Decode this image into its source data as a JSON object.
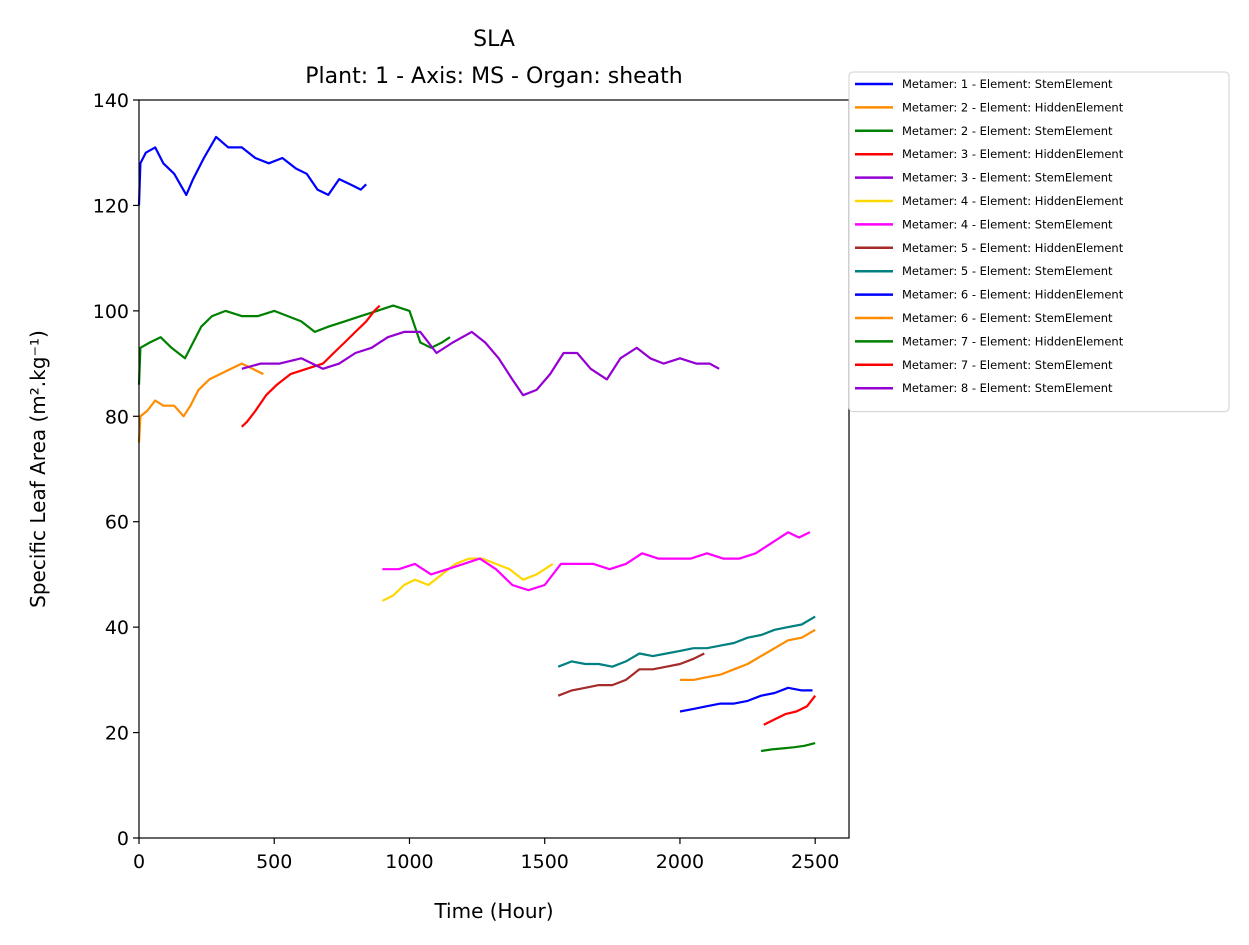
{
  "chart_data": {
    "type": "line",
    "title": "SLA",
    "subtitle": "Plant: 1 - Axis: MS - Organ: sheath",
    "xlabel": "Time (Hour)",
    "ylabel": "Specific Leaf Area (m².kg⁻¹)",
    "xlim": [
      0,
      2625
    ],
    "ylim": [
      0,
      140
    ],
    "xticks": [
      0,
      500,
      1000,
      1500,
      2000,
      2500
    ],
    "yticks": [
      0,
      20,
      40,
      60,
      80,
      100,
      120,
      140
    ],
    "grid": false,
    "legend_position": "outside-top-right",
    "series": [
      {
        "name": "Metamer: 1 - Element: StemElement",
        "color": "#0000ff",
        "x": [
          0,
          5,
          25,
          60,
          90,
          130,
          175,
          200,
          240,
          285,
          330,
          380,
          430,
          480,
          530,
          580,
          620,
          660,
          700,
          740,
          780,
          820,
          840
        ],
        "y": [
          120,
          128,
          130,
          131,
          128,
          126,
          122,
          125,
          129,
          133,
          131,
          131,
          129,
          128,
          129,
          127,
          126,
          123,
          122,
          125,
          124,
          123,
          124
        ]
      },
      {
        "name": "Metamer: 2 - Element: HiddenElement",
        "color": "#ff8c00",
        "x": [
          0,
          5,
          30,
          60,
          90,
          130,
          165,
          190,
          220,
          260,
          300,
          340,
          380,
          420,
          460
        ],
        "y": [
          75,
          80,
          81,
          83,
          82,
          82,
          80,
          82,
          85,
          87,
          88,
          89,
          90,
          89,
          88
        ]
      },
      {
        "name": "Metamer: 2 - Element: StemElement",
        "color": "#008000",
        "x": [
          0,
          5,
          40,
          80,
          120,
          170,
          200,
          230,
          270,
          320,
          380,
          440,
          500,
          550,
          600,
          650,
          700,
          760,
          820,
          880,
          940,
          1000,
          1040,
          1080,
          1120,
          1150
        ],
        "y": [
          86,
          93,
          94,
          95,
          93,
          91,
          94,
          97,
          99,
          100,
          99,
          99,
          100,
          99,
          98,
          96,
          97,
          98,
          99,
          100,
          101,
          100,
          94,
          93,
          94,
          95
        ]
      },
      {
        "name": "Metamer: 3 - Element: HiddenElement",
        "color": "#ff0000",
        "x": [
          380,
          400,
          430,
          470,
          510,
          560,
          620,
          680,
          720,
          760,
          800,
          840,
          870,
          890
        ],
        "y": [
          78,
          79,
          81,
          84,
          86,
          88,
          89,
          90,
          92,
          94,
          96,
          98,
          100,
          101
        ]
      },
      {
        "name": "Metamer: 3 - Element: StemElement",
        "color": "#9400d3",
        "x": [
          380,
          450,
          520,
          600,
          680,
          740,
          800,
          860,
          920,
          980,
          1040,
          1100,
          1160,
          1230,
          1280,
          1330,
          1380,
          1420,
          1470,
          1520,
          1570,
          1620,
          1670,
          1730,
          1780,
          1840,
          1890,
          1940,
          2000,
          2060,
          2110,
          2145
        ],
        "y": [
          89,
          90,
          90,
          91,
          89,
          90,
          92,
          93,
          95,
          96,
          96,
          92,
          94,
          96,
          94,
          91,
          87,
          84,
          85,
          88,
          92,
          92,
          89,
          87,
          91,
          93,
          91,
          90,
          91,
          90,
          90,
          89
        ]
      },
      {
        "name": "Metamer: 4 - Element: HiddenElement",
        "color": "#ffd700",
        "x": [
          900,
          940,
          980,
          1020,
          1070,
          1120,
          1170,
          1220,
          1270,
          1320,
          1370,
          1420,
          1470,
          1530
        ],
        "y": [
          45,
          46,
          48,
          49,
          48,
          50,
          52,
          53,
          53,
          52,
          51,
          49,
          50,
          52
        ]
      },
      {
        "name": "Metamer: 4 - Element: StemElement",
        "color": "#ff00ff",
        "x": [
          900,
          960,
          1020,
          1080,
          1140,
          1200,
          1260,
          1320,
          1380,
          1440,
          1500,
          1560,
          1620,
          1680,
          1740,
          1800,
          1860,
          1920,
          1980,
          2040,
          2100,
          2160,
          2220,
          2280,
          2340,
          2400,
          2440,
          2480
        ],
        "y": [
          51,
          51,
          52,
          50,
          51,
          52,
          53,
          51,
          48,
          47,
          48,
          52,
          52,
          52,
          51,
          52,
          54,
          53,
          53,
          53,
          54,
          53,
          53,
          54,
          56,
          58,
          57,
          58
        ]
      },
      {
        "name": "Metamer: 5 - Element: HiddenElement",
        "color": "#a52a2a",
        "x": [
          1550,
          1600,
          1650,
          1700,
          1750,
          1800,
          1850,
          1900,
          1950,
          2000,
          2050,
          2090
        ],
        "y": [
          27,
          28,
          28.5,
          29,
          29,
          30,
          32,
          32,
          32.5,
          33,
          34,
          35
        ]
      },
      {
        "name": "Metamer: 5 - Element: StemElement",
        "color": "#008080",
        "x": [
          1550,
          1600,
          1650,
          1700,
          1750,
          1800,
          1850,
          1900,
          1950,
          2000,
          2050,
          2100,
          2150,
          2200,
          2250,
          2300,
          2350,
          2400,
          2450,
          2500
        ],
        "y": [
          32.5,
          33.5,
          33,
          33,
          32.5,
          33.5,
          35,
          34.5,
          35,
          35.5,
          36,
          36,
          36.5,
          37,
          38,
          38.5,
          39.5,
          40,
          40.5,
          42
        ]
      },
      {
        "name": "Metamer: 6 - Element: HiddenElement",
        "color": "#0000ff",
        "x": [
          2000,
          2050,
          2100,
          2150,
          2200,
          2250,
          2300,
          2350,
          2400,
          2450,
          2490
        ],
        "y": [
          24,
          24.5,
          25,
          25.5,
          25.5,
          26,
          27,
          27.5,
          28.5,
          28,
          28
        ]
      },
      {
        "name": "Metamer: 6 - Element: StemElement",
        "color": "#ff8c00",
        "x": [
          2000,
          2050,
          2100,
          2150,
          2200,
          2250,
          2300,
          2350,
          2400,
          2450,
          2500
        ],
        "y": [
          30,
          30,
          30.5,
          31,
          32,
          33,
          34.5,
          36,
          37.5,
          38,
          39.5
        ]
      },
      {
        "name": "Metamer: 7 - Element: HiddenElement",
        "color": "#008000",
        "x": [
          2300,
          2340,
          2380,
          2420,
          2460,
          2500
        ],
        "y": [
          16.5,
          16.8,
          17,
          17.2,
          17.5,
          18
        ]
      },
      {
        "name": "Metamer: 7 - Element: StemElement",
        "color": "#ff0000",
        "x": [
          2310,
          2350,
          2390,
          2430,
          2470,
          2500
        ],
        "y": [
          21.5,
          22.5,
          23.5,
          24,
          25,
          27
        ]
      },
      {
        "name": "Metamer: 8 - Element: StemElement",
        "color": "#9400d3",
        "x": [],
        "y": []
      }
    ]
  }
}
